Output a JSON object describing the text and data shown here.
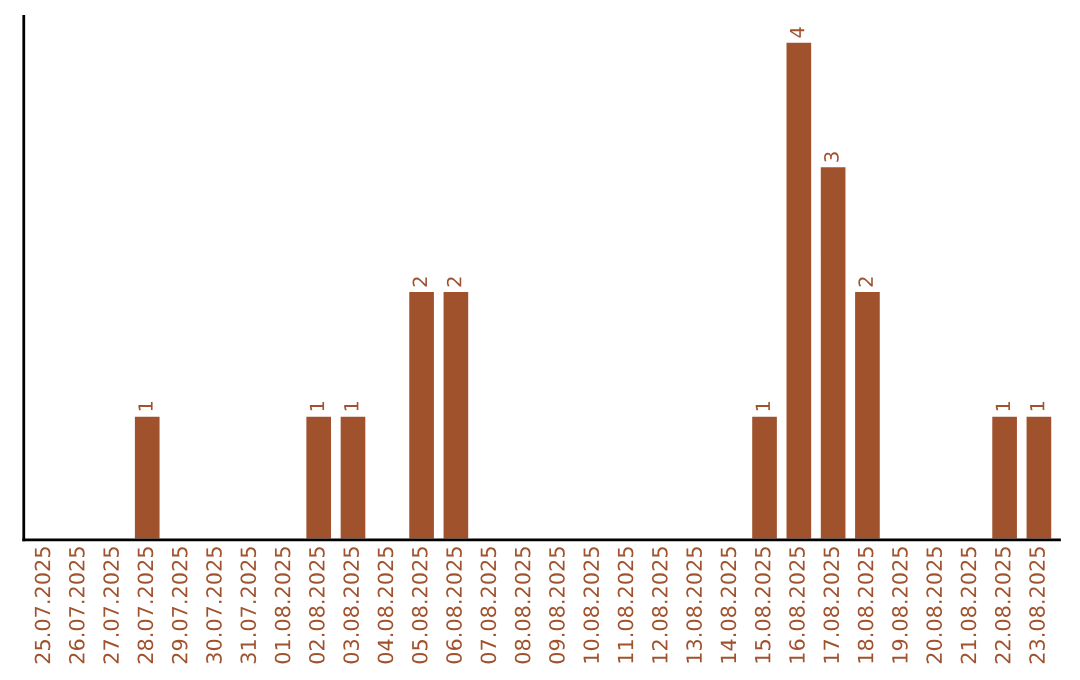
{
  "chart_data": {
    "type": "bar",
    "categories": [
      "25.07.2025",
      "26.07.2025",
      "27.07.2025",
      "28.07.2025",
      "29.07.2025",
      "30.07.2025",
      "31.07.2025",
      "01.08.2025",
      "02.08.2025",
      "03.08.2025",
      "04.08.2025",
      "05.08.2025",
      "06.08.2025",
      "07.08.2025",
      "08.08.2025",
      "09.08.2025",
      "10.08.2025",
      "11.08.2025",
      "12.08.2025",
      "13.08.2025",
      "14.08.2025",
      "15.08.2025",
      "16.08.2025",
      "17.08.2025",
      "18.08.2025",
      "19.08.2025",
      "20.08.2025",
      "21.08.2025",
      "22.08.2025",
      "23.08.2025"
    ],
    "values": [
      null,
      null,
      null,
      1,
      null,
      null,
      null,
      null,
      1,
      1,
      null,
      2,
      2,
      null,
      null,
      null,
      null,
      null,
      null,
      null,
      null,
      1,
      4,
      3,
      2,
      null,
      null,
      null,
      1,
      1
    ],
    "value_labels": [
      null,
      null,
      null,
      "1",
      null,
      null,
      null,
      null,
      "1",
      "1",
      null,
      "2",
      "2",
      null,
      null,
      null,
      null,
      null,
      null,
      null,
      null,
      "1",
      "4",
      "3",
      "2",
      null,
      null,
      null,
      "1",
      "1"
    ],
    "color": "#a0522d",
    "ylim": [
      0,
      4.2
    ],
    "tick_labels": "x",
    "grid": false,
    "legend": false
  }
}
